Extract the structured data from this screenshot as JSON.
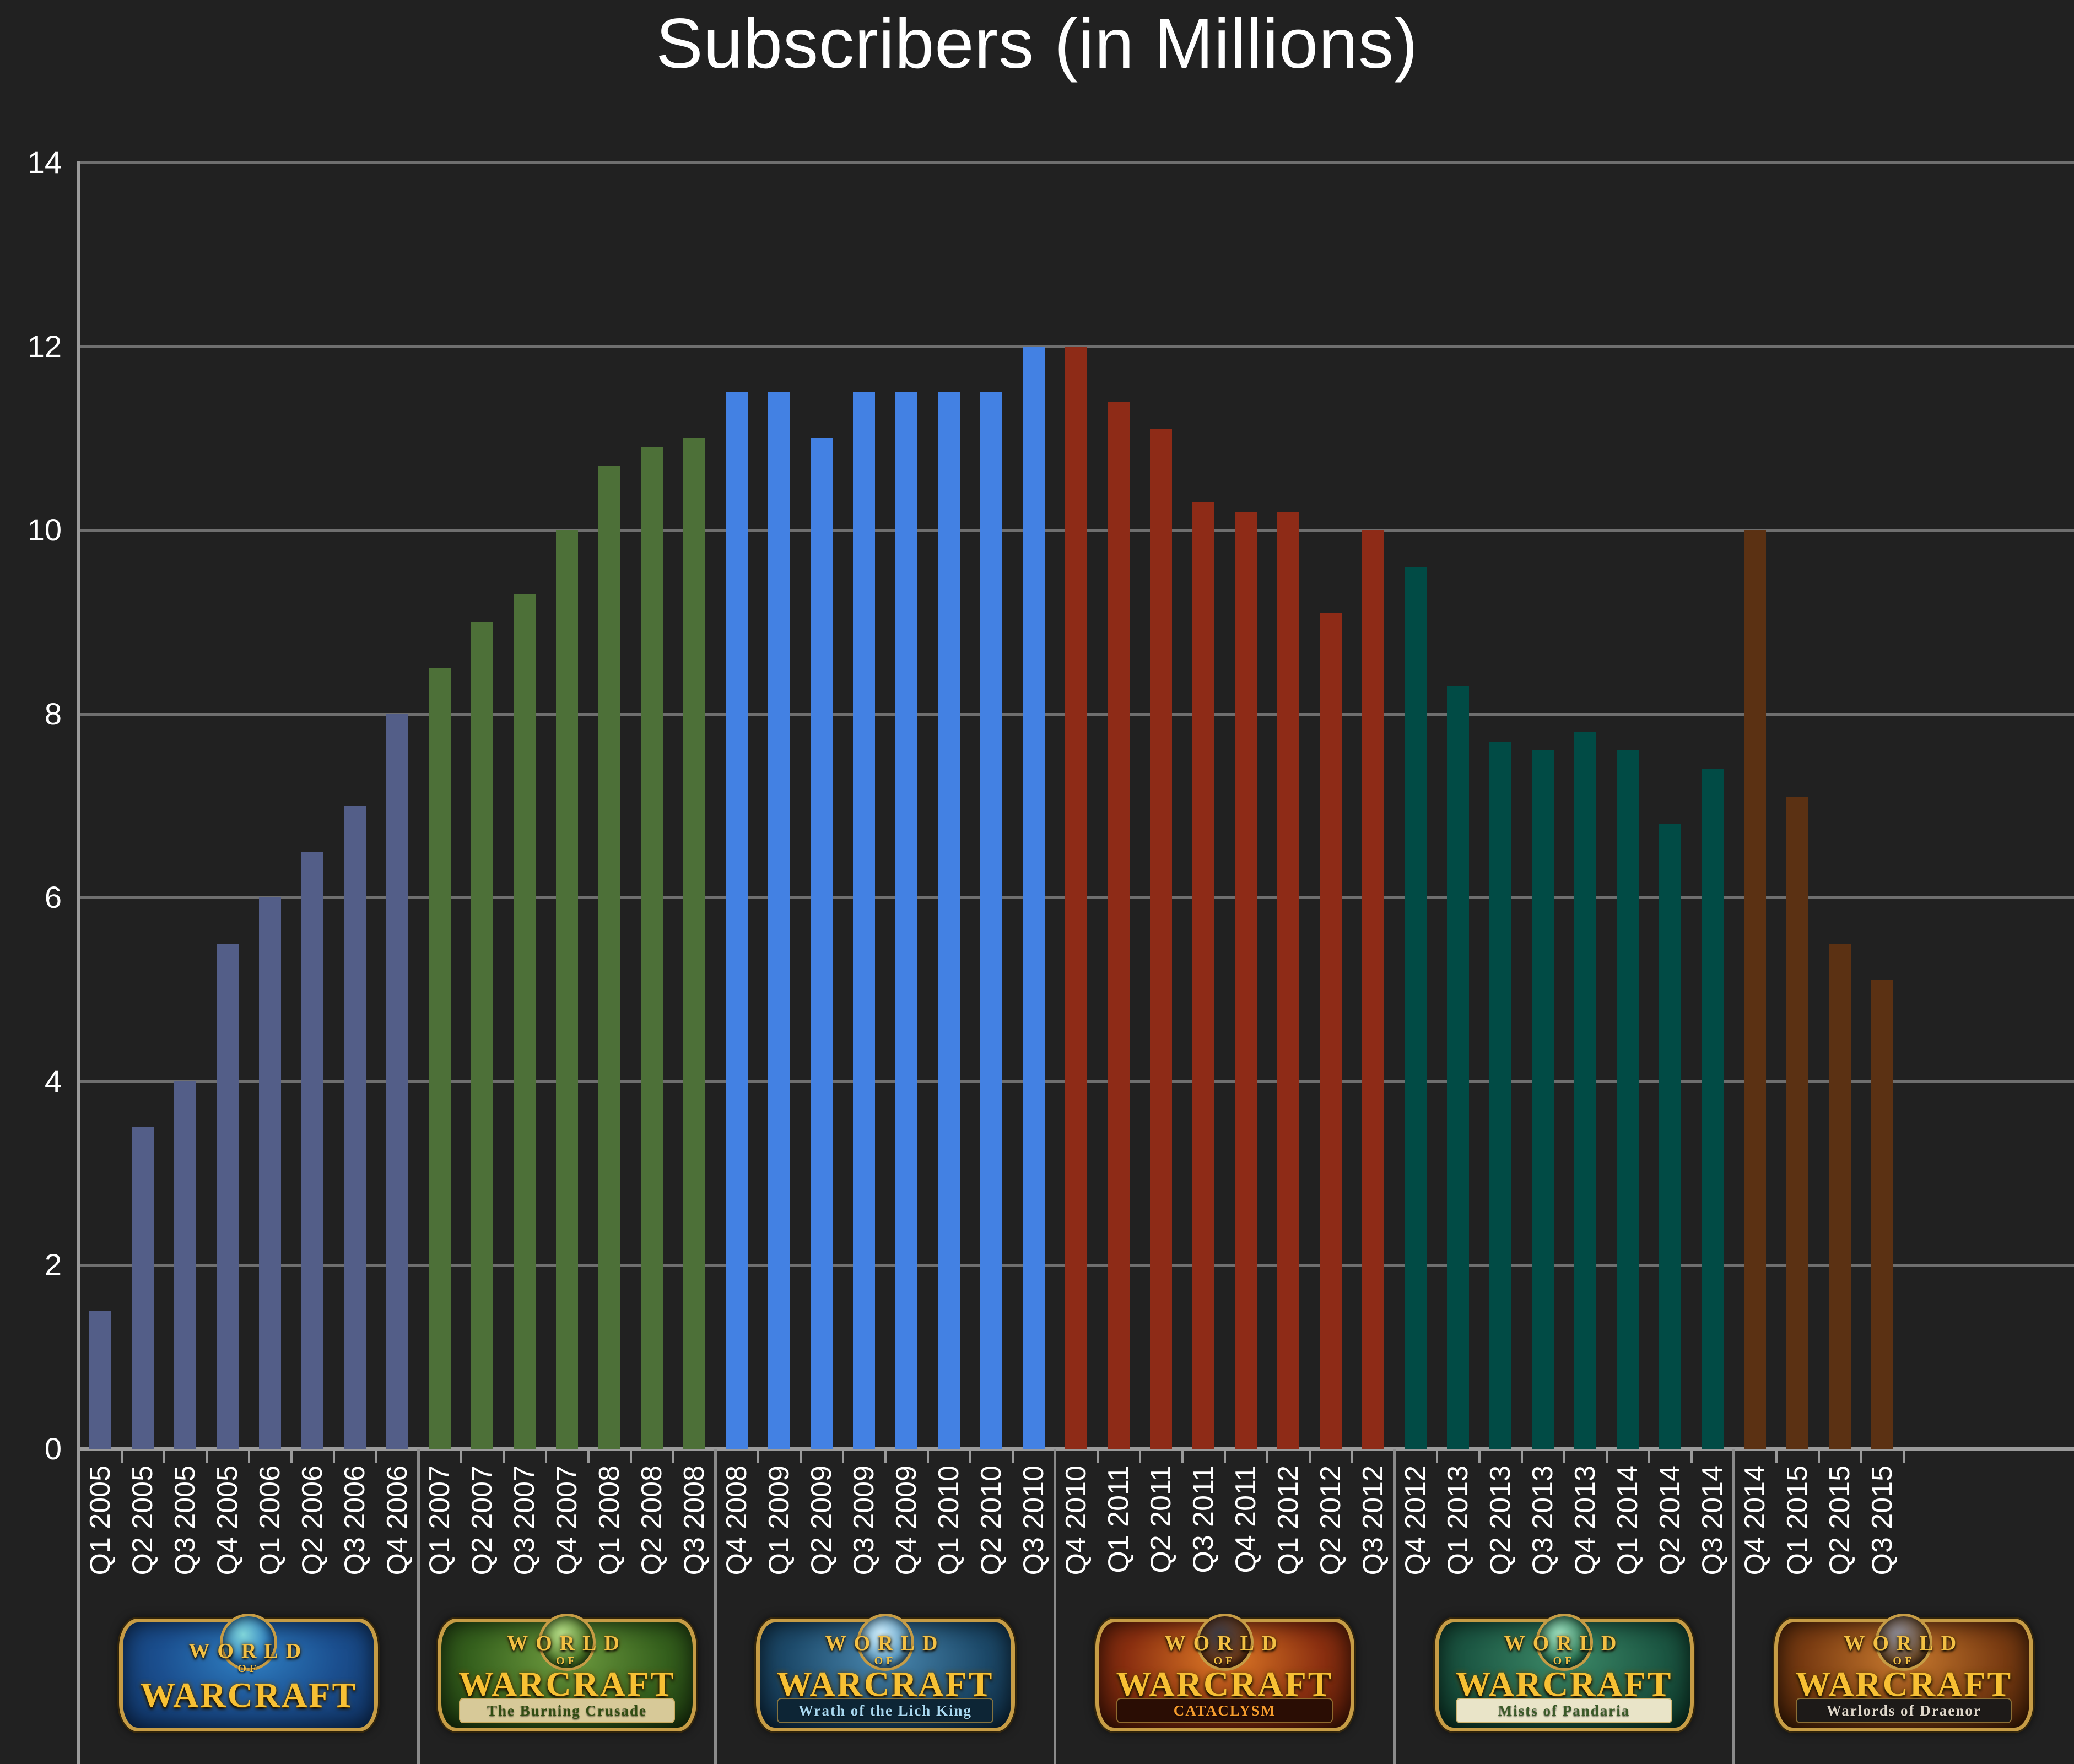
{
  "title": "Subscribers (in Millions)",
  "background_color": "#212121",
  "axis_color": "#9b9b9b",
  "gridline_color": "#6f6f6f",
  "text_color": "#ffffff",
  "chart_data": {
    "type": "bar",
    "title": "Subscribers (in Millions)",
    "xlabel": "",
    "ylabel": "",
    "ylim": [
      0,
      14
    ],
    "yticks": [
      0,
      2,
      4,
      6,
      8,
      10,
      12,
      14
    ],
    "grid": true,
    "legend_position": "none",
    "categories": [
      "Q1 2005",
      "Q2 2005",
      "Q3 2005",
      "Q4 2005",
      "Q1 2006",
      "Q2 2006",
      "Q3 2006",
      "Q4 2006",
      "Q1 2007",
      "Q2 2007",
      "Q3 2007",
      "Q4 2007",
      "Q1 2008",
      "Q2 2008",
      "Q3 2008",
      "Q4 2008",
      "Q1 2009",
      "Q2 2009",
      "Q3 2009",
      "Q4 2009",
      "Q1 2010",
      "Q2 2010",
      "Q3 2010",
      "Q4 2010",
      "Q1 2011",
      "Q2 2011",
      "Q3 2011",
      "Q4 2011",
      "Q1 2012",
      "Q2 2012",
      "Q3 2012",
      "Q4 2012",
      "Q1 2013",
      "Q2 2013",
      "Q3 2013",
      "Q4 2013",
      "Q1 2014",
      "Q2 2014",
      "Q3 2014",
      "Q4 2014",
      "Q1 2015",
      "Q2 2015",
      "Q3 2015"
    ],
    "values": [
      1.5,
      3.5,
      4,
      5.5,
      6,
      6.5,
      7,
      8,
      8.5,
      9,
      9.3,
      10,
      10.7,
      10.9,
      11,
      11.5,
      11.5,
      11,
      11.5,
      11.5,
      11.5,
      11.5,
      12,
      12,
      11.4,
      11.1,
      10.3,
      10.2,
      10.2,
      9.1,
      10,
      9.6,
      8.3,
      7.7,
      7.6,
      7.8,
      7.6,
      6.8,
      7.4,
      10,
      7.1,
      5.5,
      5.1
    ],
    "eras": [
      {
        "name": "World of Warcraft (Classic)",
        "quarters": 8,
        "first": "Q1 2005",
        "last": "Q4 2006",
        "bar_color": "#535e88"
      },
      {
        "name": "The Burning Crusade",
        "quarters": 7,
        "first": "Q1 2007",
        "last": "Q3 2008",
        "bar_color": "#4d7038"
      },
      {
        "name": "Wrath of the Lich King",
        "quarters": 8,
        "first": "Q4 2008",
        "last": "Q3 2010",
        "bar_color": "#4381e3"
      },
      {
        "name": "Cataclysm",
        "quarters": 8,
        "first": "Q4 2010",
        "last": "Q3 2012",
        "bar_color": "#8e2b17"
      },
      {
        "name": "Mists of Pandaria",
        "quarters": 8,
        "first": "Q4 2012",
        "last": "Q3 2014",
        "bar_color": "#014b45"
      },
      {
        "name": "Warlords of Draenor",
        "quarters": 4,
        "first": "Q4 2014",
        "last": "Q3 2015",
        "bar_color": "#5b3113"
      }
    ]
  },
  "logos": [
    {
      "era": "classic",
      "line1": "WORLD",
      "line2": "OF",
      "line3": "WARCRAFT",
      "subtitle": "",
      "field": "radial-gradient(ellipse at 50% 35%, #2f7fc2 0%, #1b4f8f 50%, #0e2f5e 100%)",
      "orb": "radial-gradient(circle at 40% 35%, #7fd4d8 0%, #2a7ac0 60%, #123a6b 100%)",
      "band_bg": "",
      "band_fg": ""
    },
    {
      "era": "burning-crusade",
      "line1": "WORLD",
      "line2": "OF",
      "line3": "WARCRAFT",
      "subtitle": "The Burning Crusade",
      "field": "radial-gradient(ellipse at 50% 35%, #6f9c3f 0%, #35601d 55%, #17300c 100%)",
      "orb": "radial-gradient(circle at 40% 35%, #b8e08a 0%, #4f7a28 60%, #1d3a0e 100%)",
      "band_bg": "#d7c998",
      "band_fg": "#314d12"
    },
    {
      "era": "wrath-of-the-lich-king",
      "line1": "WORLD",
      "line2": "OF",
      "line3": "WARCRAFT",
      "subtitle": "Wrath of the Lich King",
      "field": "radial-gradient(ellipse at 50% 35%, #4a88b0 0%, #1d4a6a 55%, #0b2438 100%)",
      "orb": "radial-gradient(circle at 40% 35%, #cfeefc 0%, #5c9cc4 60%, #14324a 100%)",
      "band_bg": "#0d2535",
      "band_fg": "#a8d8f0"
    },
    {
      "era": "cataclysm",
      "line1": "WORLD",
      "line2": "OF",
      "line3": "WARCRAFT",
      "subtitle": "CATACLYSM",
      "field": "radial-gradient(ellipse at 50% 35%, #e07a26 0%, #8a2f10 55%, #3f1205 100%)",
      "orb": "radial-gradient(circle at 40% 35%, #3b3b46 0%, #6b3a1a 60%, #2a0d04 100%)",
      "band_bg": "#2a0d04",
      "band_fg": "#f59b2d"
    },
    {
      "era": "mists-of-pandaria",
      "line1": "WORLD",
      "line2": "OF",
      "line3": "WARCRAFT",
      "subtitle": "Mists of Pandaria",
      "field": "radial-gradient(ellipse at 50% 35%, #3d8a68 0%, #1c5743 55%, #0a2e21 100%)",
      "orb": "radial-gradient(circle at 40% 35%, #9fe0c0 0%, #2f7a58 60%, #0d3328 100%)",
      "band_bg": "#e9e4c8",
      "band_fg": "#3a5a28"
    },
    {
      "era": "warlords-of-draenor",
      "line1": "WORLD",
      "line2": "OF",
      "line3": "WARCRAFT",
      "subtitle": "Warlords of Draenor",
      "field": "radial-gradient(ellipse at 50% 35%, #c97a2e 0%, #7a3c12 55%, #371905 100%)",
      "orb": "radial-gradient(circle at 40% 35%, #8a8a96 0%, #6b4a2a 60%, #241206 100%)",
      "band_bg": "#1d1a18",
      "band_fg": "#ddd5c8"
    }
  ]
}
